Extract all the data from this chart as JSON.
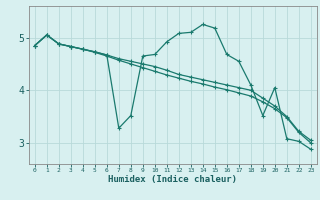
{
  "xlabel": "Humidex (Indice chaleur)",
  "ylabel": "",
  "background_color": "#d8f0f0",
  "grid_color": "#b8dada",
  "line_color": "#1a7a6e",
  "xlim": [
    -0.5,
    23.5
  ],
  "ylim": [
    2.6,
    5.6
  ],
  "yticks": [
    3,
    4,
    5
  ],
  "xticks": [
    0,
    1,
    2,
    3,
    4,
    5,
    6,
    7,
    8,
    9,
    10,
    11,
    12,
    13,
    14,
    15,
    16,
    17,
    18,
    19,
    20,
    21,
    22,
    23
  ],
  "series": [
    {
      "x": [
        0,
        1,
        2,
        3,
        4,
        5,
        6,
        7,
        8,
        9,
        10,
        11,
        12,
        13,
        14,
        15,
        16,
        17,
        18,
        19,
        20,
        21,
        22,
        23
      ],
      "y": [
        4.85,
        5.05,
        4.88,
        4.83,
        4.78,
        4.73,
        4.67,
        3.28,
        3.52,
        4.65,
        4.68,
        4.92,
        5.08,
        5.1,
        5.25,
        5.18,
        4.68,
        4.55,
        4.1,
        3.52,
        4.05,
        3.08,
        3.03,
        2.88
      ]
    },
    {
      "x": [
        0,
        1,
        2,
        3,
        4,
        5,
        6,
        7,
        8,
        9,
        10,
        11,
        12,
        13,
        14,
        15,
        16,
        17,
        18,
        19,
        20,
        21,
        22,
        23
      ],
      "y": [
        4.85,
        5.05,
        4.88,
        4.83,
        4.78,
        4.73,
        4.67,
        4.6,
        4.55,
        4.5,
        4.45,
        4.38,
        4.3,
        4.25,
        4.2,
        4.15,
        4.1,
        4.05,
        4.0,
        3.85,
        3.7,
        3.5,
        3.22,
        3.05
      ]
    },
    {
      "x": [
        0,
        1,
        2,
        3,
        4,
        5,
        6,
        7,
        8,
        9,
        10,
        11,
        12,
        13,
        14,
        15,
        16,
        17,
        18,
        19,
        20,
        21,
        22,
        23
      ],
      "y": [
        4.85,
        5.05,
        4.88,
        4.83,
        4.78,
        4.72,
        4.65,
        4.57,
        4.5,
        4.43,
        4.36,
        4.29,
        4.23,
        4.17,
        4.12,
        4.06,
        4.01,
        3.95,
        3.89,
        3.78,
        3.65,
        3.48,
        3.2,
        3.0
      ]
    }
  ]
}
